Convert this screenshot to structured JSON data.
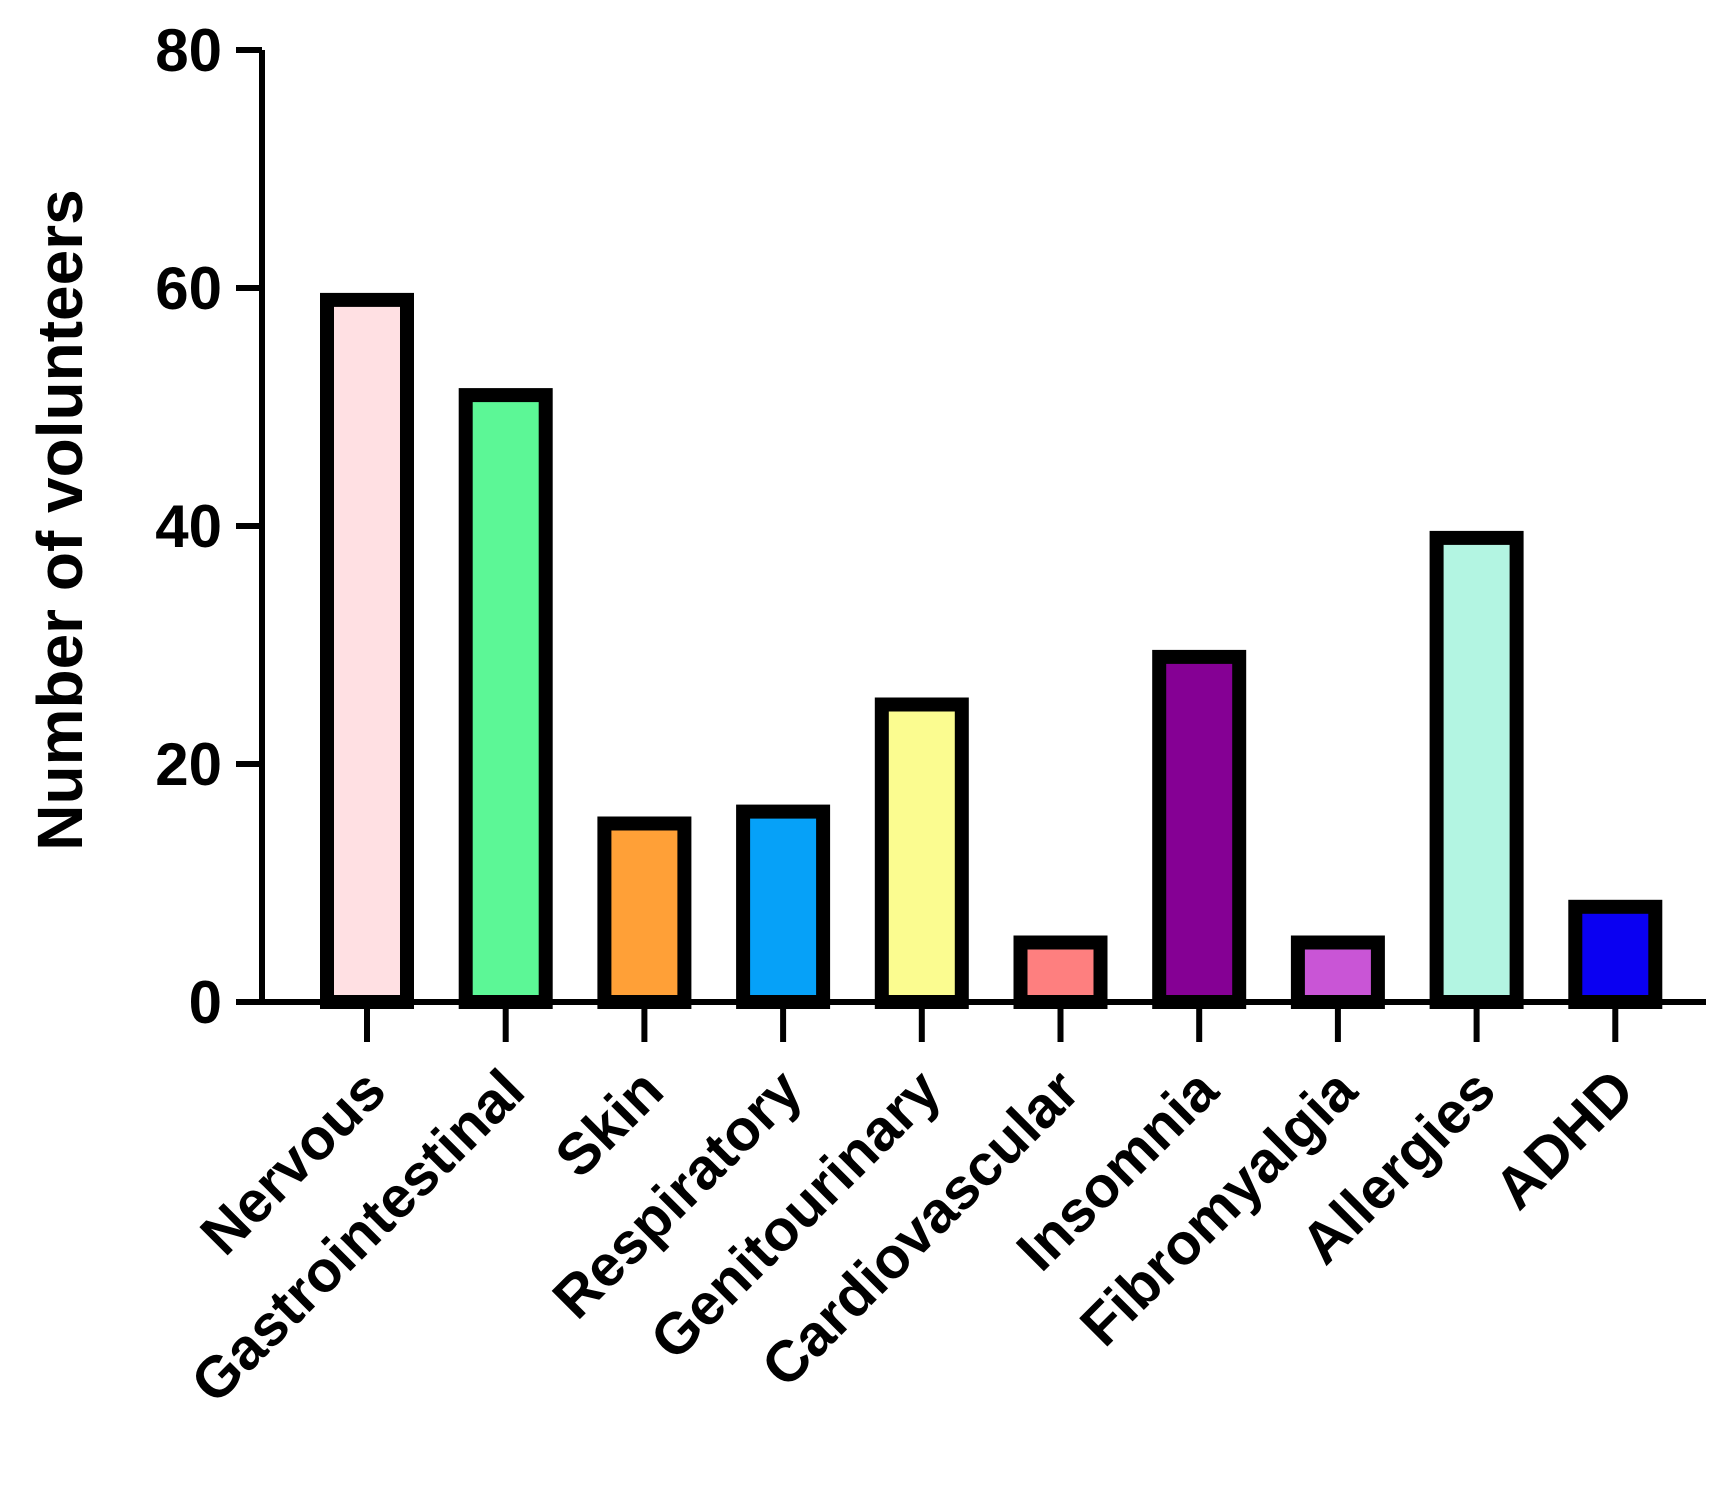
{
  "chart_data": {
    "type": "bar",
    "title": "",
    "xlabel": "",
    "ylabel": "Number of volunteers",
    "ylim": [
      0,
      80
    ],
    "yticks": [
      0,
      20,
      40,
      60,
      80
    ],
    "grid": false,
    "categories": [
      "Nervous",
      "Gastrointestinal",
      "Skin",
      "Respiratory",
      "Genitourinary",
      "Cardiovascular",
      "Insomnia",
      "Fibromyalgia",
      "Allergies",
      "ADHD"
    ],
    "values": [
      59,
      51,
      15,
      16,
      25,
      5,
      29,
      5,
      39,
      8
    ],
    "colors": [
      "#ffe0e3",
      "#5cf796",
      "#ffa037",
      "#06a1f8",
      "#fbfc90",
      "#fe7f7f",
      "#850094",
      "#c955d6",
      "#b3f5e2",
      "#0a00f2"
    ]
  }
}
